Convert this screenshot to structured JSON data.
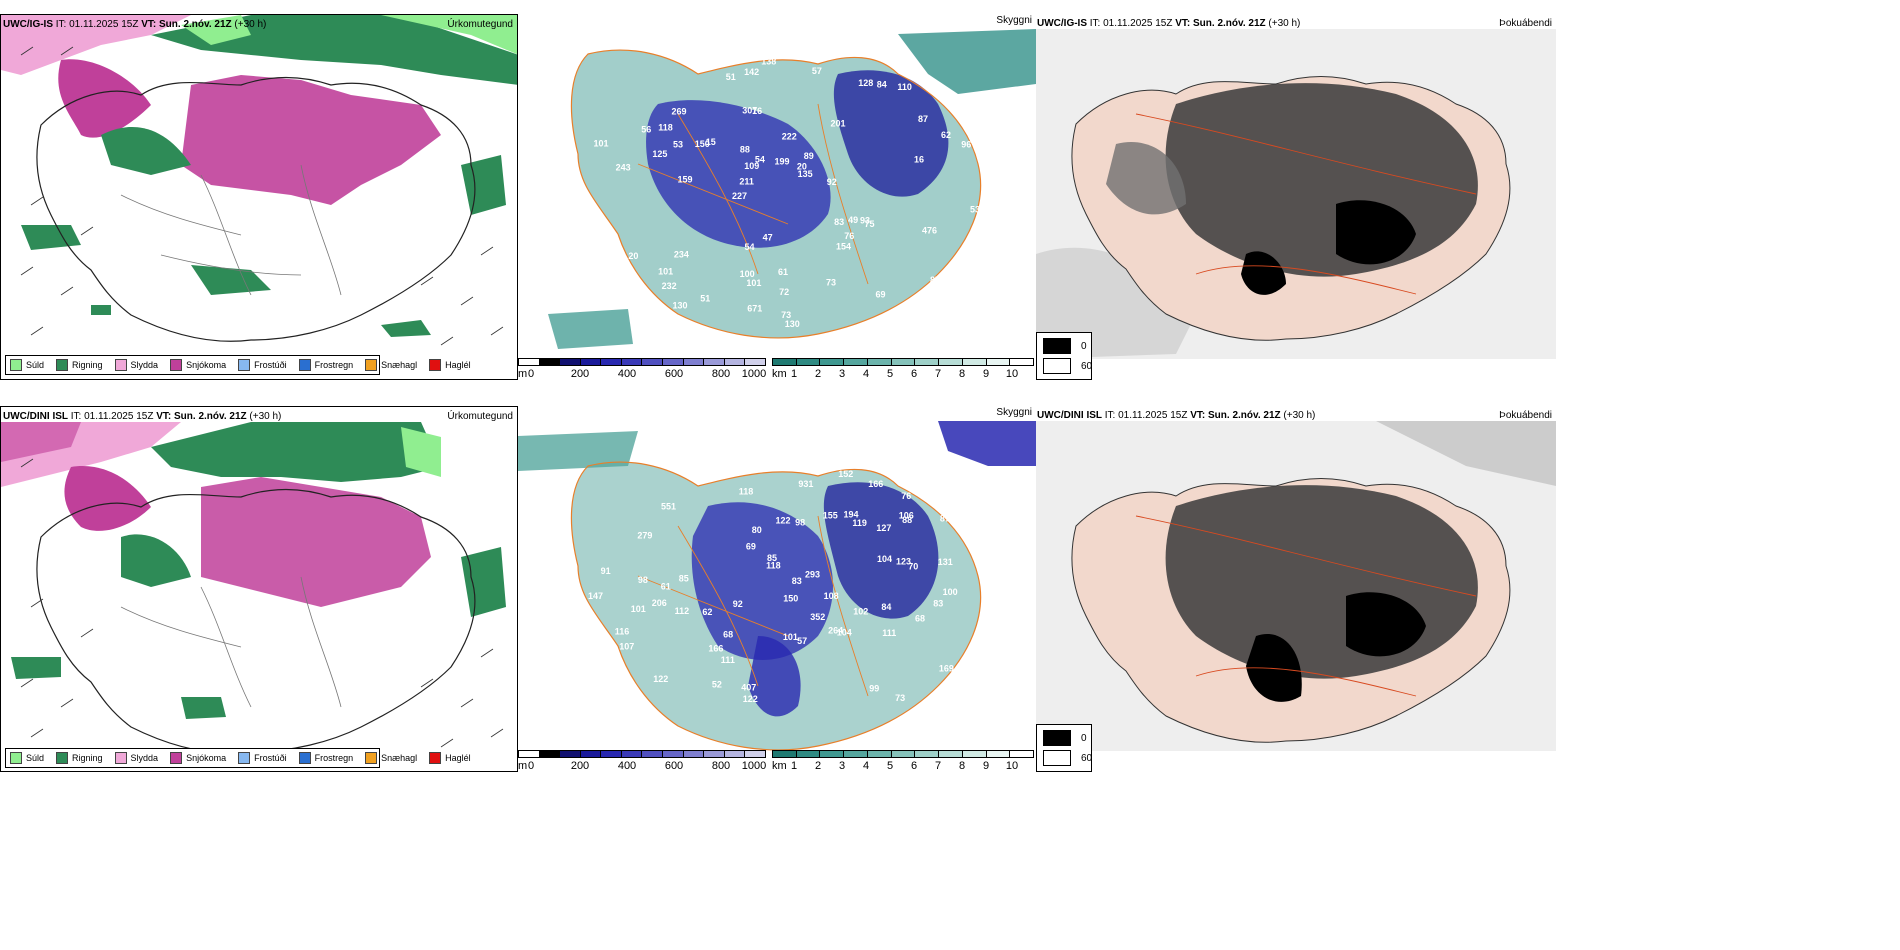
{
  "rows": [
    {
      "model": "UWC/IG-IS",
      "it_label": "IT:",
      "it_value": "01.11.2025 15Z",
      "vt_label": "VT:",
      "vt_value": "Sun. 2.nóv. 21Z",
      "lead": "(+30 h)"
    },
    {
      "model": "UWC/DINI ISL",
      "it_label": "IT:",
      "it_value": "01.11.2025 15Z",
      "vt_label": "VT:",
      "vt_value": "Sun. 2.nóv. 21Z",
      "lead": "(+30 h)"
    }
  ],
  "panel_titles": {
    "precip": "Úrkomutegund",
    "cloud": "Skyggni",
    "fog": "Þokuábendi"
  },
  "precip_legend": [
    {
      "label": "Súld",
      "color": "#90ee90"
    },
    {
      "label": "Rigning",
      "color": "#2e8b57"
    },
    {
      "label": "Slydda",
      "color": "#f0a8d8"
    },
    {
      "label": "Snjókoma",
      "color": "#c0409a"
    },
    {
      "label": "Frostúði",
      "color": "#87b8f0"
    },
    {
      "label": "Frostregn",
      "color": "#2a6fd0"
    },
    {
      "label": "Snæhagl",
      "color": "#f0a020"
    },
    {
      "label": "Haglél",
      "color": "#e01010"
    }
  ],
  "ceiling_scale": {
    "unit": "m",
    "ticks": [
      "0",
      "200",
      "400",
      "600",
      "800",
      "1000"
    ],
    "colors": [
      "#000000",
      "#101070",
      "#1a1a9a",
      "#2828b0",
      "#3a3ab8",
      "#5050c0",
      "#6666c8",
      "#7f7fd0",
      "#9a9ad8",
      "#b4b4e0",
      "#d0d0ea"
    ]
  },
  "visibility_scale": {
    "unit": "km",
    "ticks": [
      "1",
      "2",
      "3",
      "4",
      "5",
      "6",
      "7",
      "8",
      "9",
      "10"
    ],
    "colors": [
      "#1f7a72",
      "#2f8a82",
      "#3f9890",
      "#55a69e",
      "#6cb4ac",
      "#85c2ba",
      "#9ed0c8",
      "#b7ddd6",
      "#d0eae4",
      "#e8f5f2",
      "#ffffff"
    ]
  },
  "fog_legend": [
    {
      "label": "0",
      "color": "#000000"
    },
    {
      "label": "60",
      "color": "#ffffff"
    }
  ],
  "cloud_labels_top": [
    "243",
    "227",
    "201",
    "307",
    "222",
    "20",
    "15",
    "232",
    "16",
    "89",
    "75",
    "142",
    "83",
    "62",
    "211",
    "100",
    "109",
    "269",
    "128",
    "234",
    "871",
    "93",
    "130",
    "150",
    "125",
    "154",
    "130",
    "96",
    "20",
    "101",
    "135",
    "53",
    "87",
    "76",
    "73",
    "101",
    "61",
    "110",
    "138",
    "159",
    "101",
    "118",
    "84",
    "57",
    "51",
    "54",
    "54",
    "51",
    "49",
    "53",
    "56",
    "53",
    "88",
    "72",
    "199",
    "92",
    "476",
    "671",
    "16",
    "47",
    "69",
    "73"
  ],
  "cloud_labels_bottom": [
    "206",
    "264",
    "169",
    "279",
    "122",
    "62",
    "127",
    "122",
    "119",
    "73",
    "111",
    "118",
    "108",
    "107",
    "84",
    "83",
    "91",
    "98",
    "123",
    "100",
    "98",
    "112",
    "150",
    "118",
    "104",
    "101",
    "166",
    "194",
    "80",
    "68",
    "83",
    "99",
    "76",
    "68",
    "57",
    "52",
    "51",
    "92",
    "61",
    "87",
    "152",
    "155",
    "101",
    "102",
    "131",
    "111",
    "70",
    "69",
    "147",
    "122",
    "85",
    "352",
    "104",
    "407",
    "106",
    "551",
    "931",
    "116",
    "85",
    "293",
    "166",
    "88"
  ]
}
